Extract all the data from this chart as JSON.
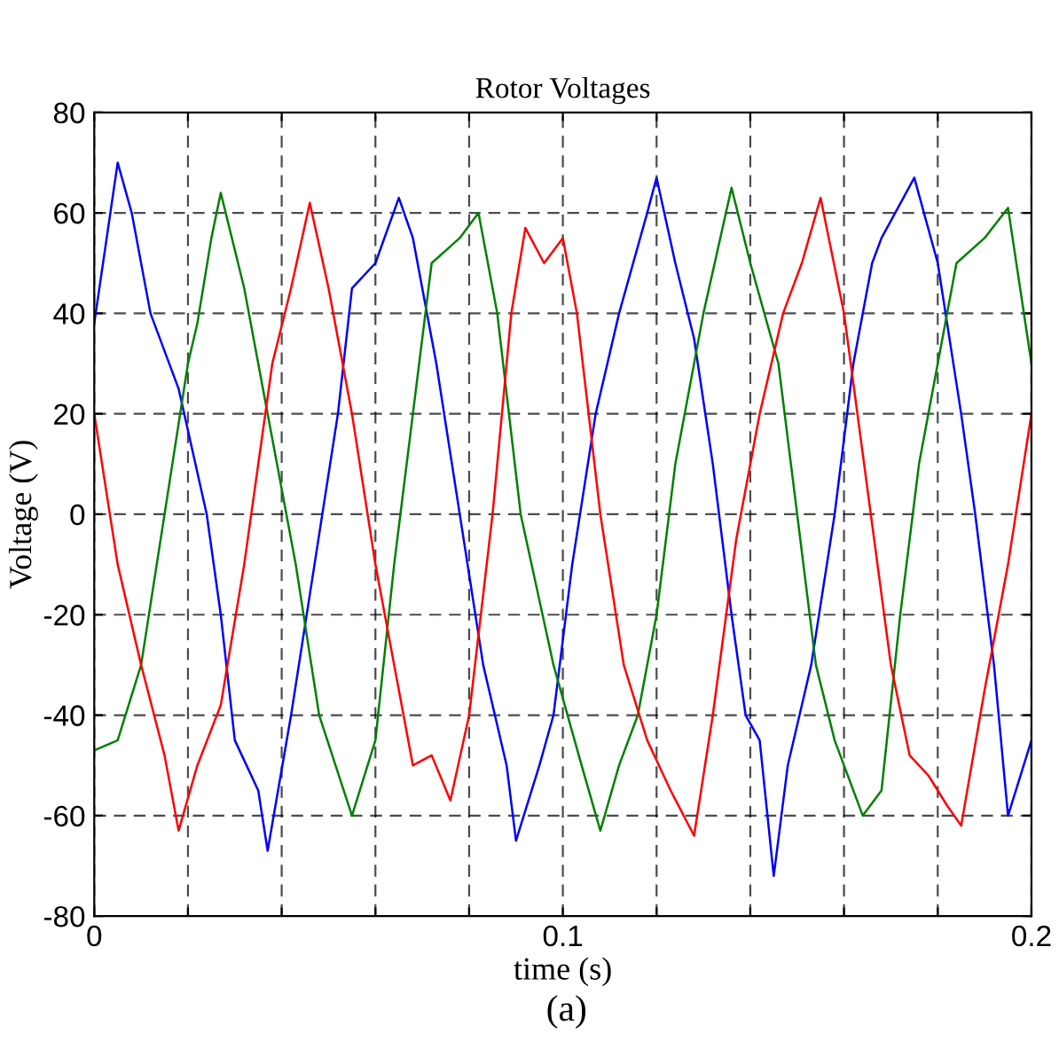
{
  "chart_data": {
    "type": "line",
    "title": "Rotor Voltages",
    "xlabel": "time (s)",
    "ylabel": "Voltage (V)",
    "annotations": [
      "(a)"
    ],
    "xlim": [
      0,
      0.2
    ],
    "ylim": [
      -80,
      80
    ],
    "xticks": [
      0,
      {
        "value": 0.02,
        "label": null
      },
      {
        "value": 0.04,
        "label": null
      },
      {
        "value": 0.06,
        "label": null
      },
      {
        "value": 0.08,
        "label": null
      },
      0.1,
      {
        "value": 0.12,
        "label": null
      },
      {
        "value": 0.14,
        "label": null
      },
      {
        "value": 0.16,
        "label": null
      },
      {
        "value": 0.18,
        "label": null
      },
      0.2
    ],
    "yticks": [
      -80,
      -60,
      -40,
      -20,
      0,
      20,
      40,
      60,
      80
    ],
    "grid": true,
    "line_style": "solid",
    "marker": "none",
    "series": [
      {
        "color": "#0000ff",
        "x": [
          0,
          0.005,
          0.008,
          0.012,
          0.018,
          0.024,
          0.027,
          0.03,
          0.035,
          0.037,
          0.042,
          0.047,
          0.052,
          0.055,
          0.06,
          0.065,
          0.068,
          0.073,
          0.078,
          0.083,
          0.088,
          0.09,
          0.095,
          0.098,
          0.102,
          0.107,
          0.112,
          0.118,
          0.12,
          0.124,
          0.128,
          0.132,
          0.136,
          0.139,
          0.142,
          0.145,
          0.148,
          0.153,
          0.158,
          0.162,
          0.166,
          0.168,
          0.175,
          0.18,
          0.185,
          0.188,
          0.192,
          0.195,
          0.2
        ],
        "values": [
          38,
          70,
          60,
          40,
          25,
          0,
          -20,
          -45,
          -55,
          -67,
          -40,
          -10,
          20,
          45,
          50,
          63,
          55,
          30,
          0,
          -30,
          -50,
          -65,
          -50,
          -40,
          -10,
          20,
          40,
          60,
          67,
          50,
          35,
          10,
          -20,
          -40,
          -45,
          -72,
          -50,
          -30,
          0,
          30,
          50,
          55,
          67,
          50,
          20,
          0,
          -30,
          -60,
          -45
        ]
      },
      {
        "color": "#008000",
        "x": [
          0,
          0.005,
          0.01,
          0.015,
          0.02,
          0.022,
          0.025,
          0.027,
          0.032,
          0.037,
          0.043,
          0.048,
          0.055,
          0.06,
          0.064,
          0.068,
          0.072,
          0.078,
          0.082,
          0.086,
          0.091,
          0.098,
          0.104,
          0.108,
          0.112,
          0.116,
          0.12,
          0.124,
          0.13,
          0.136,
          0.14,
          0.146,
          0.15,
          0.154,
          0.158,
          0.164,
          0.168,
          0.172,
          0.176,
          0.18,
          0.184,
          0.19,
          0.195,
          0.2
        ],
        "values": [
          -47,
          -45,
          -30,
          0,
          30,
          38,
          55,
          64,
          45,
          20,
          -10,
          -40,
          -60,
          -45,
          -10,
          20,
          50,
          55,
          60,
          40,
          0,
          -30,
          -50,
          -63,
          -50,
          -40,
          -20,
          10,
          40,
          65,
          50,
          30,
          0,
          -30,
          -45,
          -60,
          -55,
          -20,
          10,
          30,
          50,
          55,
          61,
          30
        ]
      },
      {
        "color": "#ff0000",
        "x": [
          0,
          0.005,
          0.01,
          0.015,
          0.018,
          0.022,
          0.027,
          0.032,
          0.035,
          0.038,
          0.042,
          0.046,
          0.05,
          0.055,
          0.06,
          0.065,
          0.068,
          0.072,
          0.076,
          0.08,
          0.085,
          0.089,
          0.092,
          0.096,
          0.1,
          0.103,
          0.108,
          0.113,
          0.118,
          0.123,
          0.128,
          0.132,
          0.137,
          0.142,
          0.147,
          0.151,
          0.155,
          0.16,
          0.165,
          0.17,
          0.174,
          0.178,
          0.182,
          0.185,
          0.19,
          0.195,
          0.2
        ],
        "values": [
          20,
          -10,
          -30,
          -48,
          -63,
          -50,
          -38,
          -10,
          10,
          30,
          45,
          62,
          45,
          20,
          -10,
          -35,
          -50,
          -48,
          -57,
          -40,
          0,
          40,
          57,
          50,
          55,
          40,
          0,
          -30,
          -45,
          -55,
          -64,
          -40,
          -5,
          20,
          40,
          50,
          63,
          40,
          5,
          -30,
          -48,
          -52,
          -58,
          -62,
          -35,
          -10,
          20
        ]
      }
    ]
  }
}
